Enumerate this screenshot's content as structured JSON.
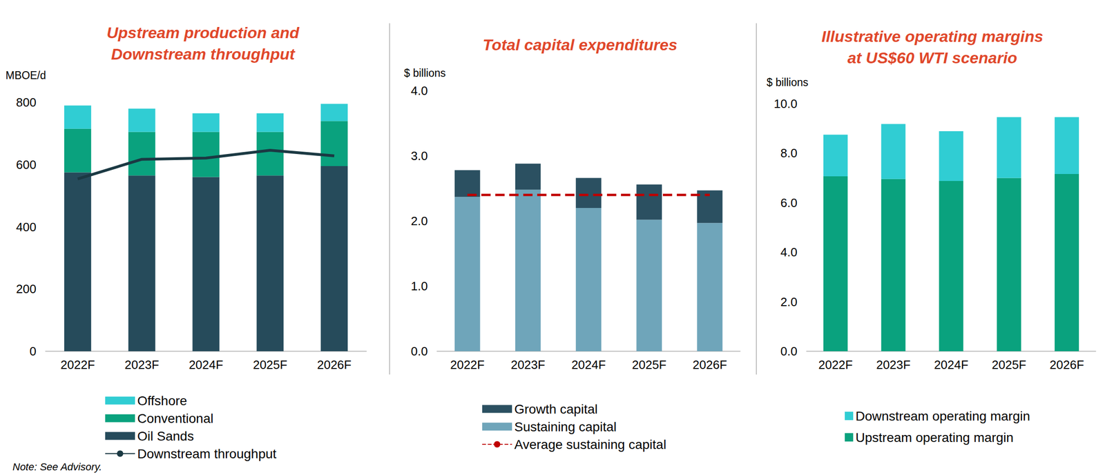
{
  "chart_data": [
    {
      "type": "bar",
      "title": "Upstream production and\nDownstream throughput",
      "y_label": "MBOE/d",
      "categories": [
        "2022F",
        "2023F",
        "2024F",
        "2025F",
        "2026F"
      ],
      "series": [
        {
          "name": "Offshore",
          "color": "#30cdd3",
          "values": [
            75,
            75,
            60,
            60,
            55
          ]
        },
        {
          "name": "Conventional",
          "color": "#0aa27e",
          "values": [
            140,
            140,
            145,
            140,
            145
          ]
        },
        {
          "name": "Oil Sands",
          "color": "#264b5b",
          "values": [
            575,
            565,
            560,
            565,
            595
          ]
        },
        {
          "name": "Downstream throughput",
          "type": "line",
          "color": "#1b3943",
          "line_style": "solid",
          "values": [
            554,
            617,
            621,
            646,
            628
          ]
        }
      ],
      "ylim": [
        0,
        800
      ],
      "yticks": [
        0,
        200,
        400,
        600,
        800
      ],
      "grid": false,
      "stacked": true,
      "legend": "bottom"
    },
    {
      "type": "bar",
      "title": "Total capital expenditures",
      "y_label": "$ billions",
      "categories": [
        "2022F",
        "2023F",
        "2024F",
        "2025F",
        "2026F"
      ],
      "series": [
        {
          "name": "Growth capital",
          "color": "#2b5061",
          "values": [
            0.41,
            0.4,
            0.46,
            0.54,
            0.5
          ]
        },
        {
          "name": "Sustaining capital",
          "color": "#6fa5ba",
          "values": [
            2.37,
            2.48,
            2.2,
            2.02,
            1.97
          ]
        },
        {
          "name": "Average sustaining capital",
          "type": "line",
          "color": "#c00000",
          "line_style": "dashed",
          "values": [
            2.4,
            2.4,
            2.4,
            2.4,
            2.4
          ]
        }
      ],
      "ylim": [
        0,
        4
      ],
      "yticks": [
        {
          "value": 0,
          "label": "0.0"
        },
        {
          "value": 1,
          "label": "1.0"
        },
        {
          "value": 2,
          "label": "2.0"
        },
        {
          "value": 3,
          "label": "3.0"
        },
        {
          "value": 4,
          "label": "4.0"
        }
      ],
      "grid": false,
      "stacked": true,
      "legend": "bottom"
    },
    {
      "type": "bar",
      "title": "Illustrative operating margins\nat US$60 WTI scenario",
      "y_label": "$ billions",
      "categories": [
        "2022F",
        "2023F",
        "2024F",
        "2025F",
        "2026F"
      ],
      "series": [
        {
          "name": "Downstream operating margin",
          "color": "#30cdd3",
          "values": [
            1.68,
            2.22,
            2.01,
            2.46,
            2.3
          ]
        },
        {
          "name": "Upstream operating margin",
          "color": "#0aa27e",
          "values": [
            7.07,
            6.96,
            6.88,
            7.0,
            7.16
          ]
        }
      ],
      "ylim": [
        0,
        10
      ],
      "yticks": [
        {
          "value": 0,
          "label": "0.0"
        },
        {
          "value": 2,
          "label": "2.0"
        },
        {
          "value": 4,
          "label": "4.0"
        },
        {
          "value": 6,
          "label": "6.0"
        },
        {
          "value": 8,
          "label": "8.0"
        },
        {
          "value": 10,
          "label": "10.0"
        }
      ],
      "grid": false,
      "stacked": true,
      "legend": "bottom"
    }
  ],
  "note": "Note: See Advisory."
}
